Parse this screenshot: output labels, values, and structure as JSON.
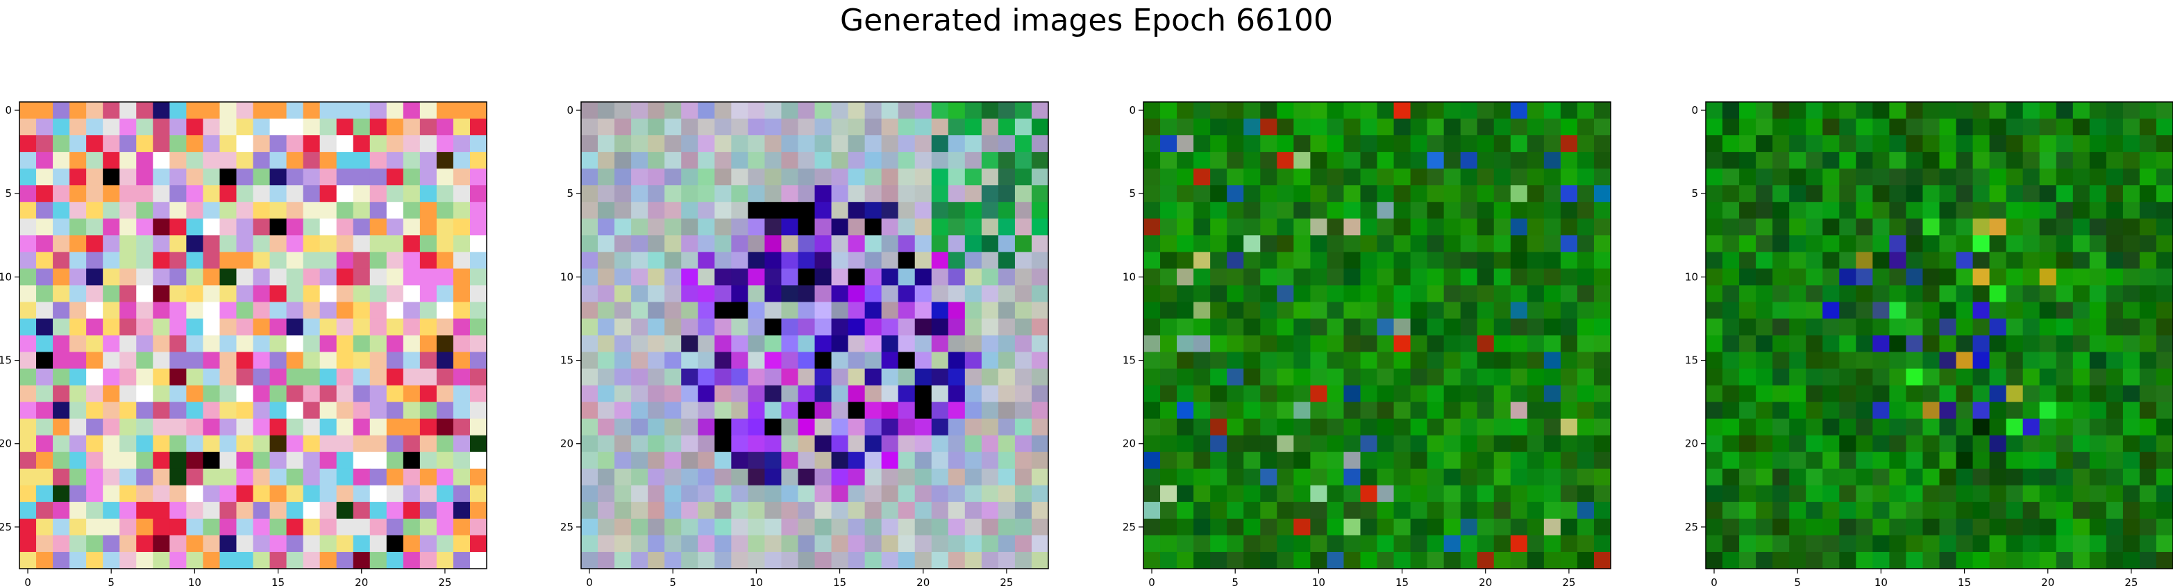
{
  "chart_data": {
    "type": "heatmap",
    "title": "Generated images Epoch 66100",
    "panels": [
      {
        "name": "",
        "size": 28,
        "palette": "multicolor",
        "xticks": [
          0,
          5,
          10,
          15,
          20,
          25
        ],
        "yticks": [
          0,
          5,
          10,
          15,
          20,
          25
        ],
        "xlim": [
          -0.5,
          27.5
        ],
        "ylim": [
          27.5,
          -0.5
        ]
      },
      {
        "name": "",
        "size": 28,
        "palette": "pastel-blue-purple",
        "xticks": [
          0,
          5,
          10,
          15,
          20,
          25
        ],
        "yticks": [
          0,
          5,
          10,
          15,
          20,
          25
        ],
        "xlim": [
          -0.5,
          27.5
        ],
        "ylim": [
          27.5,
          -0.5
        ]
      },
      {
        "name": "",
        "size": 28,
        "palette": "green",
        "xticks": [
          0,
          5,
          10,
          15,
          20,
          25
        ],
        "yticks": [
          0,
          5,
          10,
          15,
          20,
          25
        ],
        "xlim": [
          -0.5,
          27.5
        ],
        "ylim": [
          27.5,
          -0.5
        ]
      },
      {
        "name": "",
        "size": 28,
        "palette": "green-blue",
        "xticks": [
          0,
          5,
          10,
          15,
          20,
          25
        ],
        "yticks": [
          0,
          5,
          10,
          15,
          20,
          25
        ],
        "xlim": [
          -0.5,
          27.5
        ],
        "ylim": [
          27.5,
          -0.5
        ]
      }
    ]
  }
}
